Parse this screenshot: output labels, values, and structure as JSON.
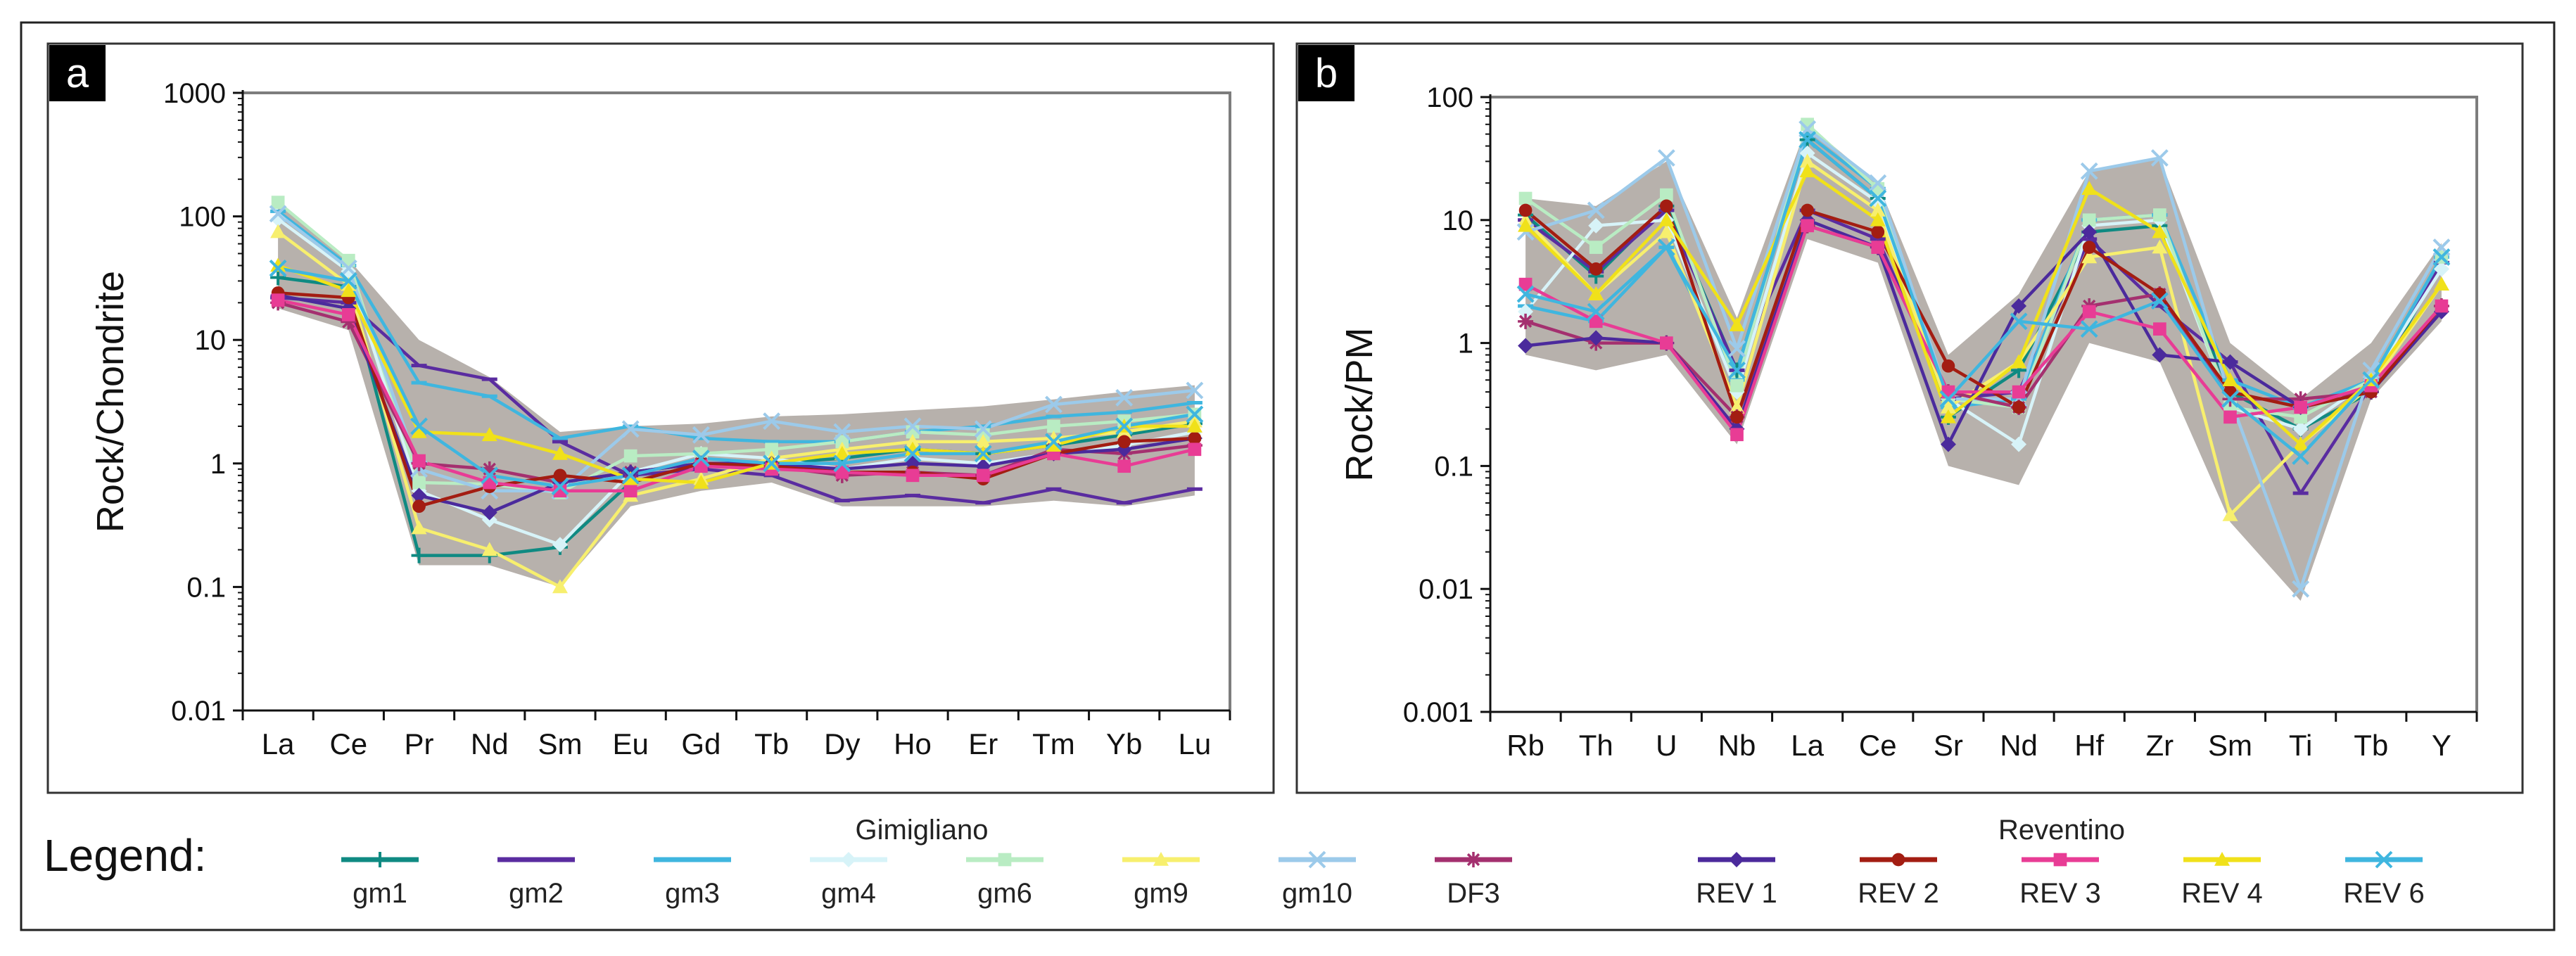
{
  "figure": {
    "legend_label": "Legend:",
    "group_a_title": "Gimigliano",
    "group_b_title": "Reventino"
  },
  "legend_a": [
    {
      "name": "gm1",
      "color": "#0f8a82",
      "marker": "plus"
    },
    {
      "name": "gm2",
      "color": "#5a2ca0",
      "marker": "dash"
    },
    {
      "name": "gm3",
      "color": "#3fb6df",
      "marker": "dash"
    },
    {
      "name": "gm4",
      "color": "#d7f3f8",
      "marker": "diamond"
    },
    {
      "name": "gm6",
      "color": "#b9ecc3",
      "marker": "square"
    },
    {
      "name": "gm9",
      "color": "#f7ef6e",
      "marker": "triangle"
    },
    {
      "name": "gm10",
      "color": "#9ccaea",
      "marker": "x"
    },
    {
      "name": "DF3",
      "color": "#a4306f",
      "marker": "star"
    }
  ],
  "legend_b": [
    {
      "name": "REV 1",
      "color": "#4b2a9c",
      "marker": "diamond"
    },
    {
      "name": "REV 2",
      "color": "#a31d12",
      "marker": "circle"
    },
    {
      "name": "REV 3",
      "color": "#e83c95",
      "marker": "square"
    },
    {
      "name": "REV 4",
      "color": "#f0e11a",
      "marker": "triangle"
    },
    {
      "name": "REV 6",
      "color": "#3fb6df",
      "marker": "x"
    }
  ],
  "chart_data": [
    {
      "panel": "a",
      "type": "line",
      "scale": "log",
      "title": "",
      "xlabel": "",
      "ylabel": "Rock/Chondrite",
      "ylim": [
        0.01,
        1000
      ],
      "yticks": [
        "0.01",
        "0.1",
        "1",
        "10",
        "100",
        "1000"
      ],
      "categories": [
        "La",
        "Ce",
        "Pr",
        "Nd",
        "Sm",
        "Eu",
        "Gd",
        "Tb",
        "Dy",
        "Ho",
        "Er",
        "Tm",
        "Yb",
        "Lu"
      ],
      "envelope": {
        "upper": [
          135,
          45,
          10,
          5,
          1.8,
          2.0,
          2.1,
          2.4,
          2.5,
          2.7,
          2.9,
          3.3,
          3.8,
          4.3
        ],
        "lower": [
          18,
          12,
          0.15,
          0.15,
          0.1,
          0.45,
          0.6,
          0.7,
          0.45,
          0.45,
          0.45,
          0.5,
          0.45,
          0.55
        ],
        "color": "#b7b1ac"
      },
      "series": [
        {
          "name": "gm1",
          "color": "#0f8a82",
          "marker": "plus",
          "values": [
            32,
            27,
            0.18,
            0.18,
            0.21,
            0.7,
            1.0,
            1.0,
            1.1,
            1.3,
            1.2,
            1.4,
            1.7,
            2.1
          ]
        },
        {
          "name": "gm2",
          "color": "#5a2ca0",
          "marker": "dash",
          "values": [
            22,
            20,
            6.2,
            4.8,
            1.5,
            0.8,
            0.9,
            0.8,
            0.5,
            0.55,
            0.48,
            0.62,
            0.48,
            0.62
          ]
        },
        {
          "name": "gm3",
          "color": "#3fb6df",
          "marker": "dash",
          "values": [
            110,
            40,
            4.5,
            3.5,
            1.6,
            2.0,
            1.6,
            1.5,
            1.5,
            1.8,
            2.0,
            2.4,
            2.6,
            3.1
          ]
        },
        {
          "name": "gm4",
          "color": "#d7f3f8",
          "marker": "diamond",
          "values": [
            95,
            36,
            0.6,
            0.35,
            0.22,
            0.85,
            1.2,
            1.1,
            0.9,
            1.1,
            1.0,
            1.2,
            1.4,
            1.8
          ]
        },
        {
          "name": "gm6",
          "color": "#b9ecc3",
          "marker": "square",
          "values": [
            130,
            44,
            0.7,
            0.68,
            0.58,
            1.15,
            1.2,
            1.3,
            1.5,
            1.8,
            1.7,
            2.0,
            2.2,
            2.5
          ]
        },
        {
          "name": "gm9",
          "color": "#f7ef6e",
          "marker": "triangle",
          "values": [
            75,
            28,
            0.3,
            0.2,
            0.1,
            0.55,
            0.75,
            1.1,
            1.3,
            1.5,
            1.5,
            1.6,
            1.8,
            2.2
          ]
        },
        {
          "name": "gm10",
          "color": "#9ccaea",
          "marker": "x",
          "values": [
            105,
            38,
            0.9,
            0.6,
            0.6,
            1.9,
            1.7,
            2.2,
            1.8,
            2.0,
            1.9,
            3.0,
            3.4,
            3.9
          ]
        },
        {
          "name": "DF3",
          "color": "#a4306f",
          "marker": "star",
          "values": [
            20,
            14,
            1.0,
            0.9,
            0.7,
            0.85,
            1.0,
            0.95,
            0.8,
            0.85,
            0.8,
            1.3,
            1.2,
            1.4
          ]
        },
        {
          "name": "REV 1",
          "color": "#4b2a9c",
          "marker": "diamond",
          "values": [
            23,
            18,
            0.55,
            0.4,
            0.7,
            0.85,
            1.0,
            1.0,
            0.9,
            1.0,
            0.95,
            1.2,
            1.3,
            1.6
          ]
        },
        {
          "name": "REV 2",
          "color": "#a31d12",
          "marker": "circle",
          "values": [
            24,
            22,
            0.45,
            0.65,
            0.8,
            0.7,
            1.0,
            0.95,
            0.85,
            0.85,
            0.75,
            1.2,
            1.5,
            1.6
          ]
        },
        {
          "name": "REV 3",
          "color": "#e83c95",
          "marker": "square",
          "values": [
            21,
            16,
            1.05,
            0.7,
            0.6,
            0.6,
            0.95,
            0.9,
            0.85,
            0.8,
            0.8,
            1.2,
            0.95,
            1.3
          ]
        },
        {
          "name": "REV 4",
          "color": "#f0e11a",
          "marker": "triangle",
          "values": [
            40,
            25,
            1.8,
            1.7,
            1.2,
            0.75,
            0.7,
            1.0,
            1.2,
            1.3,
            1.2,
            1.4,
            2.0,
            2.0
          ]
        },
        {
          "name": "REV 6",
          "color": "#3fb6df",
          "marker": "x",
          "values": [
            38,
            30,
            2.0,
            0.8,
            0.65,
            0.8,
            1.1,
            1.0,
            1.0,
            1.2,
            1.2,
            1.5,
            2.0,
            2.5
          ]
        }
      ]
    },
    {
      "panel": "b",
      "type": "line",
      "scale": "log",
      "title": "",
      "xlabel": "",
      "ylabel": "Rock/PM",
      "ylim": [
        0.001,
        100
      ],
      "yticks": [
        "0.001",
        "0.01",
        "0.1",
        "1",
        "10",
        "100"
      ],
      "categories": [
        "Rb",
        "Th",
        "U",
        "Nb",
        "La",
        "Ce",
        "Sr",
        "Nd",
        "Hf",
        "Zr",
        "Sm",
        "Ti",
        "Tb",
        "Y"
      ],
      "envelope": {
        "upper": [
          15,
          13,
          30,
          1.6,
          60,
          20,
          0.8,
          2.5,
          25,
          32,
          1.0,
          0.35,
          1.0,
          6.5
        ],
        "lower": [
          0.8,
          0.6,
          0.8,
          0.15,
          7,
          4.5,
          0.1,
          0.07,
          1.0,
          0.7,
          0.035,
          0.008,
          0.35,
          1.5
        ],
        "color": "#b7b1ac"
      },
      "series": [
        {
          "name": "gm1",
          "color": "#0f8a82",
          "marker": "plus",
          "values": [
            11,
            3.5,
            13,
            0.6,
            45,
            15,
            0.25,
            0.6,
            8,
            9,
            0.4,
            0.2,
            0.4,
            4.5
          ]
        },
        {
          "name": "gm2",
          "color": "#5a2ca0",
          "marker": "dash",
          "values": [
            10,
            3.8,
            12,
            0.6,
            12,
            7,
            0.35,
            0.4,
            7,
            2,
            0.7,
            0.06,
            0.45,
            4.5
          ]
        },
        {
          "name": "gm3",
          "color": "#3fb6df",
          "marker": "dash",
          "values": [
            2.0,
            1.5,
            6,
            0.5,
            50,
            18,
            0.3,
            0.35,
            10,
            11,
            0.5,
            0.3,
            0.5,
            5
          ]
        },
        {
          "name": "gm4",
          "color": "#d7f3f8",
          "marker": "diamond",
          "values": [
            1.8,
            9,
            10,
            0.4,
            35,
            14,
            0.35,
            0.15,
            9,
            10,
            0.3,
            0.2,
            0.5,
            4
          ]
        },
        {
          "name": "gm6",
          "color": "#b9ecc3",
          "marker": "square",
          "values": [
            15,
            6,
            16,
            0.45,
            60,
            18,
            0.35,
            0.3,
            10,
            11,
            0.3,
            0.25,
            0.5,
            5
          ]
        },
        {
          "name": "gm9",
          "color": "#f7ef6e",
          "marker": "triangle",
          "values": [
            10,
            2.5,
            8,
            0.3,
            30,
            12,
            0.3,
            0.7,
            5,
            6,
            0.04,
            0.15,
            0.45,
            3
          ]
        },
        {
          "name": "gm10",
          "color": "#9ccaea",
          "marker": "x",
          "values": [
            8,
            12,
            32,
            0.9,
            55,
            20,
            0.35,
            0.35,
            25,
            32,
            0.35,
            0.01,
            0.6,
            6
          ]
        },
        {
          "name": "DF3",
          "color": "#a4306f",
          "marker": "star",
          "values": [
            1.5,
            1.0,
            1.0,
            0.25,
            9,
            6,
            0.4,
            0.3,
            2,
            2.5,
            0.35,
            0.35,
            0.4,
            2
          ]
        },
        {
          "name": "REV 1",
          "color": "#4b2a9c",
          "marker": "diamond",
          "values": [
            0.95,
            1.1,
            1.0,
            0.2,
            10,
            6,
            0.15,
            2.0,
            8,
            0.8,
            0.7,
            0.3,
            0.4,
            1.8
          ]
        },
        {
          "name": "REV 2",
          "color": "#a31d12",
          "marker": "circle",
          "values": [
            12,
            4,
            13,
            0.25,
            12,
            8,
            0.65,
            0.3,
            6,
            2.5,
            0.4,
            0.3,
            0.4,
            2
          ]
        },
        {
          "name": "REV 3",
          "color": "#e83c95",
          "marker": "square",
          "values": [
            3,
            1.5,
            1.0,
            0.18,
            9,
            6,
            0.4,
            0.4,
            1.8,
            1.3,
            0.25,
            0.3,
            0.45,
            2
          ]
        },
        {
          "name": "REV 4",
          "color": "#f0e11a",
          "marker": "triangle",
          "values": [
            9,
            2.5,
            10,
            1.4,
            25,
            10,
            0.25,
            0.7,
            18,
            8,
            0.5,
            0.15,
            0.5,
            3
          ]
        },
        {
          "name": "REV 6",
          "color": "#3fb6df",
          "marker": "x",
          "values": [
            2.5,
            1.8,
            6,
            0.6,
            45,
            15,
            0.35,
            1.5,
            1.3,
            2.2,
            0.35,
            0.12,
            0.5,
            5
          ]
        }
      ]
    }
  ]
}
